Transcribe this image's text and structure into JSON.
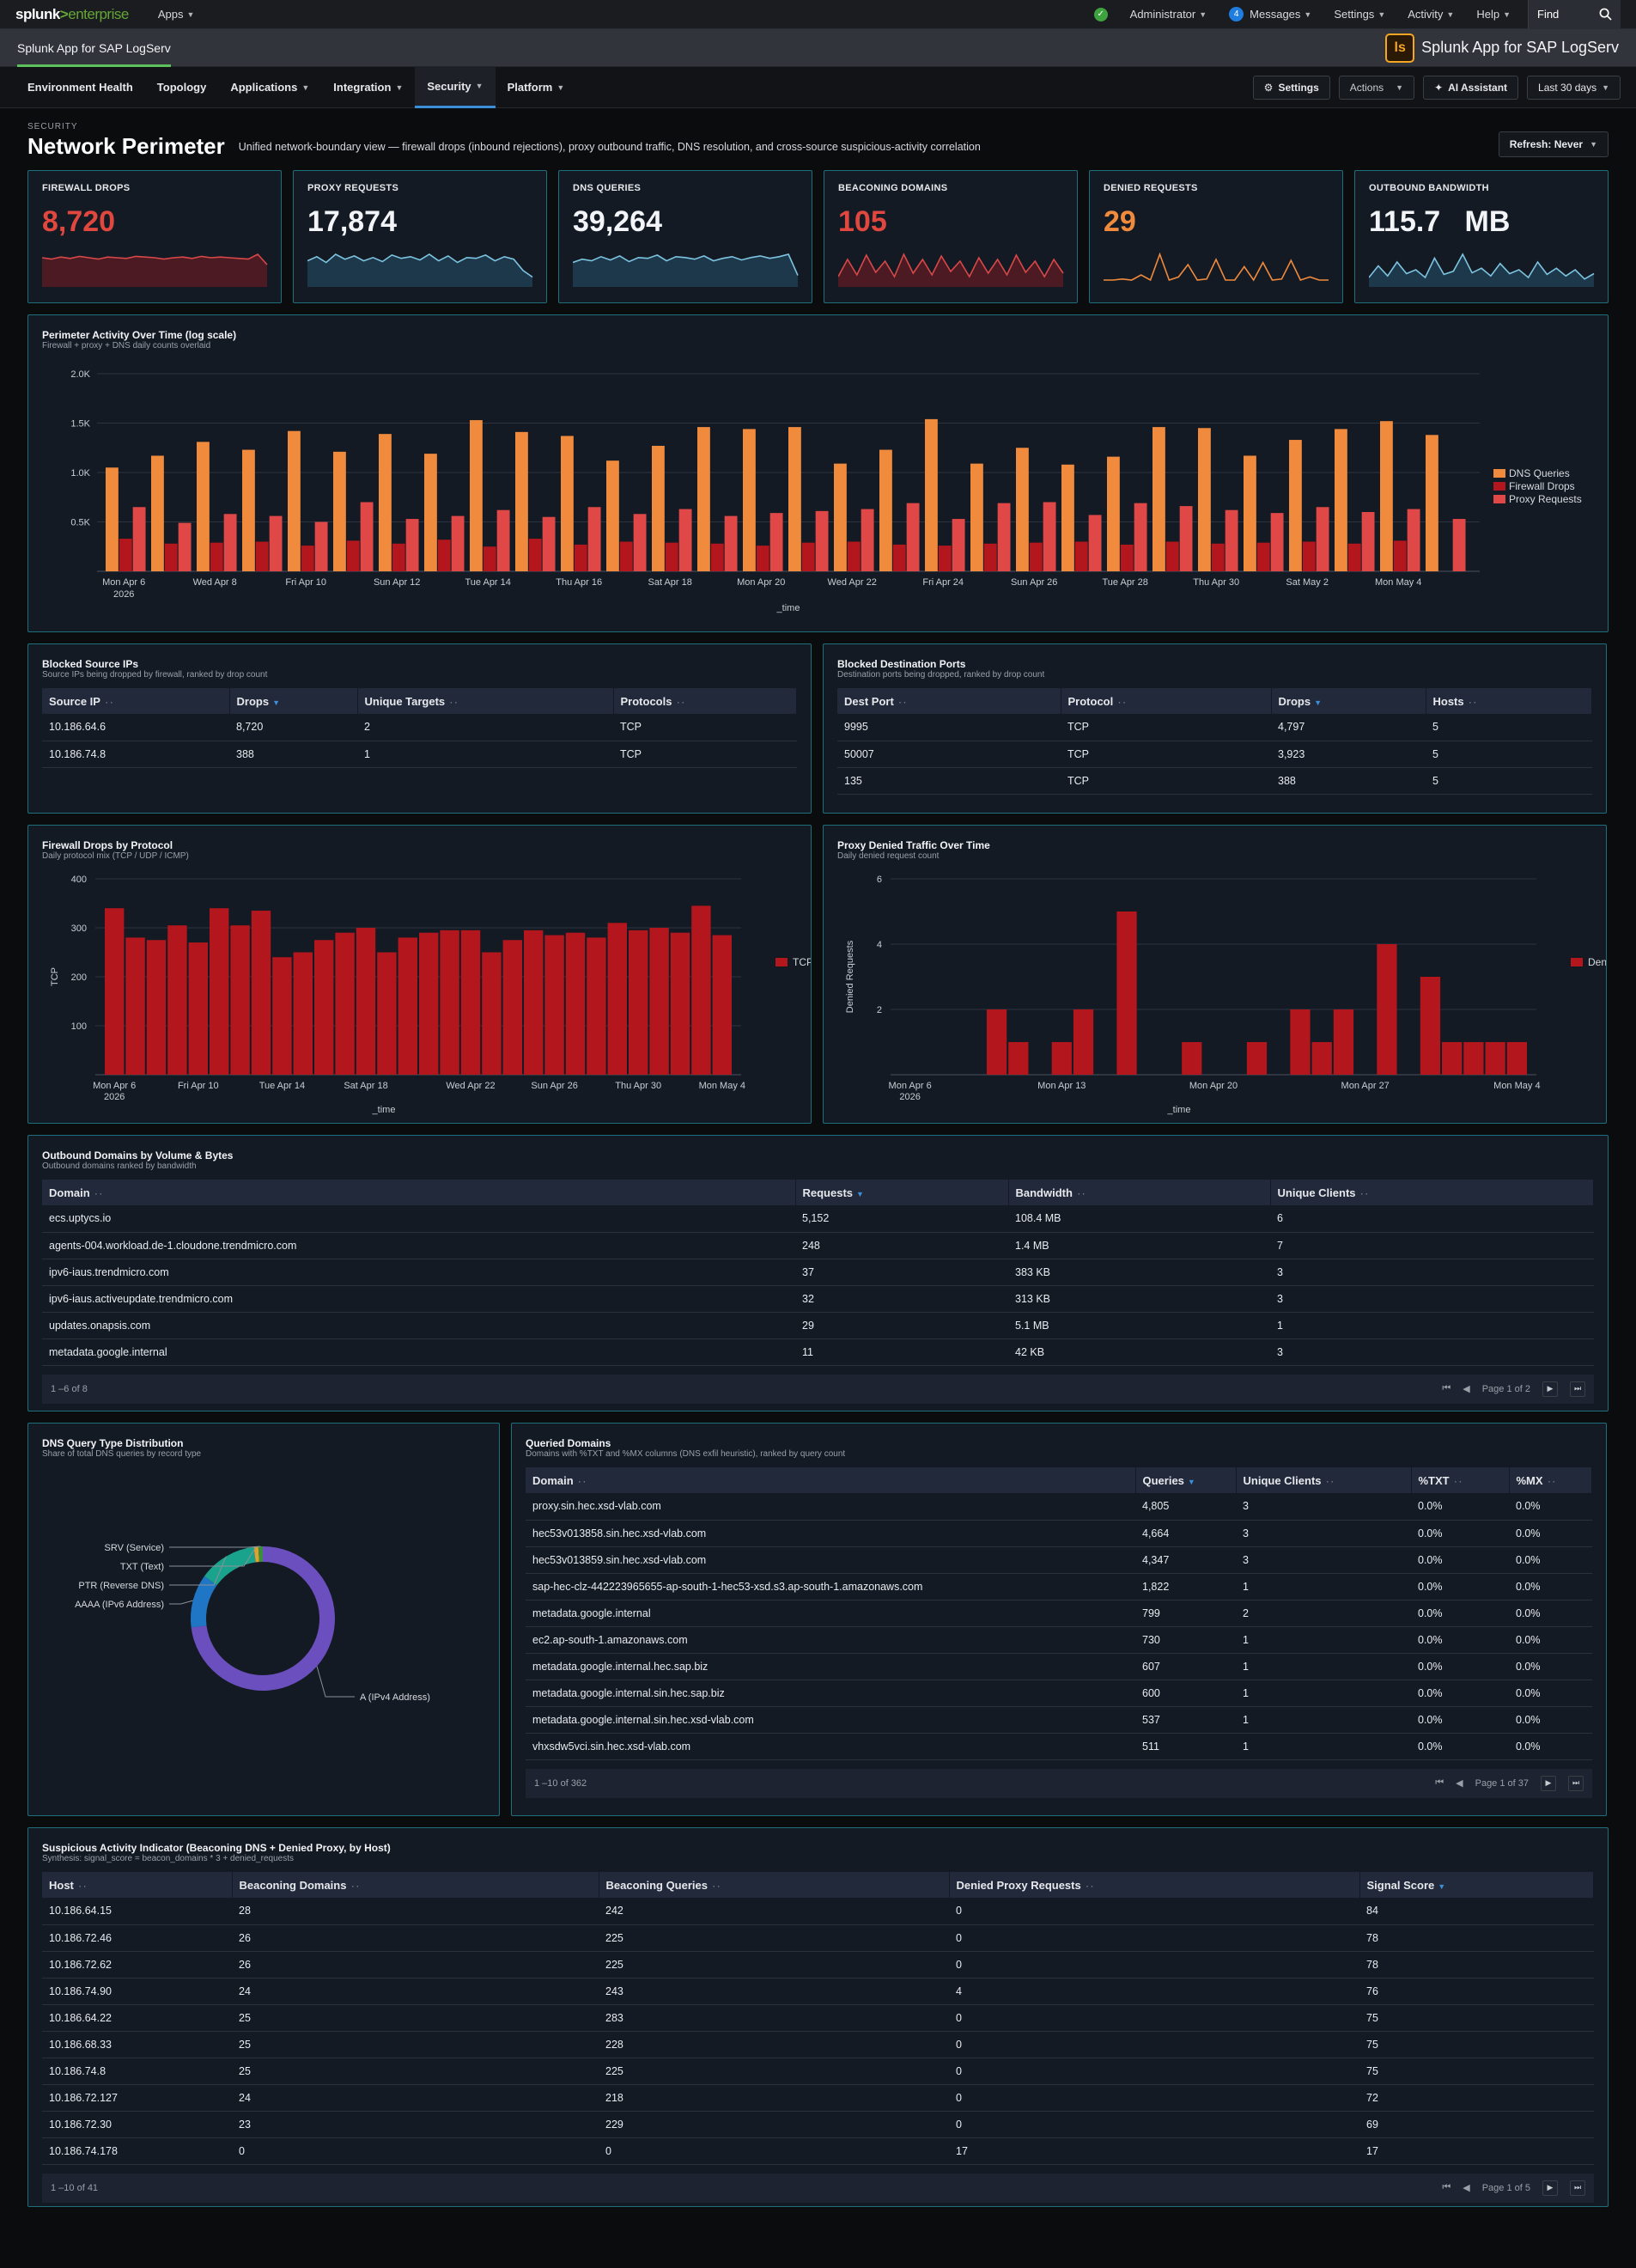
{
  "topbar": {
    "logo_main": "splunk",
    "logo_sep": ">",
    "logo_sub": "enterprise",
    "apps": "Apps",
    "admin": "Administrator",
    "messages_count": "4",
    "messages": "Messages",
    "settings": "Settings",
    "activity": "Activity",
    "help": "Help",
    "find": "Find"
  },
  "appbar": {
    "title": "Splunk App for SAP LogServ",
    "logo_letters": "ls",
    "name": "Splunk App for SAP LogServ"
  },
  "nav": {
    "tabs": [
      "Environment Health",
      "Topology",
      "Applications",
      "Integration",
      "Security",
      "Platform"
    ],
    "settings": "Settings",
    "actions": "Actions",
    "ai": "AI Assistant",
    "time": "Last 30 days"
  },
  "page": {
    "pre": "SECURITY",
    "title": "Network Perimeter",
    "desc": "Unified network-boundary view — firewall drops (inbound rejections), proxy outbound traffic, DNS resolution, and cross-source suspicious-activity correlation",
    "refresh": "Refresh: Never"
  },
  "kpis": [
    {
      "label": "FIREWALL DROPS",
      "value": "8,720",
      "color": "#e0473f",
      "spark": "#d94848",
      "fill": "#5a1a22"
    },
    {
      "label": "PROXY REQUESTS",
      "value": "17,874",
      "color": "#f2f4f7",
      "spark": "#7cc4e0",
      "fill": "#1f3e55"
    },
    {
      "label": "DNS QUERIES",
      "value": "39,264",
      "color": "#f2f4f7",
      "spark": "#7cc4e0",
      "fill": "#1f3e55"
    },
    {
      "label": "BEACONING DOMAINS",
      "value": "105",
      "color": "#e0473f",
      "spark": "#d94848",
      "fill": "#5a1a22"
    },
    {
      "label": "DENIED REQUESTS",
      "value": "29",
      "color": "#f08a3c",
      "spark": "#f08a3c",
      "fill": "none"
    },
    {
      "label": "OUTBOUND BANDWIDTH",
      "value": "115.7   MB",
      "color": "#f2f4f7",
      "spark": "#7cc4e0",
      "fill": "#1f3e55"
    }
  ],
  "perimeter": {
    "title": "Perimeter Activity Over Time (log scale)",
    "sub": "Firewall + proxy + DNS daily counts overlaid",
    "xlabel": "_time",
    "yticks": [
      "2.0K",
      "1.5K",
      "1.0K",
      "0.5K"
    ],
    "xticks": [
      "Mon Apr 6",
      "Wed Apr 8",
      "Fri Apr 10",
      "Sun Apr 12",
      "Tue Apr 14",
      "Thu Apr 16",
      "Sat Apr 18",
      "Mon Apr 20",
      "Wed Apr 22",
      "Fri Apr 24",
      "Sun Apr 26",
      "Tue Apr 28",
      "Thu Apr 30",
      "Sat May 2",
      "Mon May 4"
    ],
    "xyear": "2026",
    "legend": [
      "DNS Queries",
      "Firewall Drops",
      "Proxy Requests"
    ],
    "colors": [
      "#f08a3c",
      "#b3161c",
      "#e04848"
    ]
  },
  "chart_data": [
    {
      "type": "bar",
      "title": "Perimeter Activity Over Time (log scale)",
      "xlabel": "_time",
      "ylim": [
        0,
        2000
      ],
      "categories": [
        "Apr 6",
        "Apr 7",
        "Apr 8",
        "Apr 9",
        "Apr 10",
        "Apr 11",
        "Apr 12",
        "Apr 13",
        "Apr 14",
        "Apr 15",
        "Apr 16",
        "Apr 17",
        "Apr 18",
        "Apr 19",
        "Apr 20",
        "Apr 21",
        "Apr 22",
        "Apr 23",
        "Apr 24",
        "Apr 25",
        "Apr 26",
        "Apr 27",
        "Apr 28",
        "Apr 29",
        "Apr 30",
        "May 1",
        "May 2",
        "May 3",
        "May 4",
        "May 5"
      ],
      "series": [
        {
          "name": "DNS Queries",
          "values": [
            1050,
            1170,
            1310,
            1230,
            1420,
            1210,
            1390,
            1190,
            1530,
            1410,
            1370,
            1120,
            1270,
            1460,
            1440,
            1460,
            1090,
            1230,
            1540,
            1090,
            1250,
            1080,
            1160,
            1460,
            1450,
            1170,
            1330,
            1440,
            1520,
            1380
          ]
        },
        {
          "name": "Firewall Drops",
          "values": [
            330,
            280,
            290,
            300,
            260,
            310,
            280,
            320,
            250,
            330,
            270,
            300,
            290,
            280,
            260,
            290,
            300,
            270,
            260,
            280,
            290,
            300,
            270,
            300,
            280,
            290,
            300,
            280,
            310,
            0
          ]
        },
        {
          "name": "Proxy Requests",
          "values": [
            650,
            490,
            580,
            560,
            500,
            700,
            530,
            560,
            620,
            550,
            650,
            580,
            630,
            560,
            590,
            610,
            630,
            690,
            530,
            690,
            700,
            570,
            690,
            660,
            620,
            590,
            650,
            600,
            630,
            530
          ]
        }
      ]
    },
    {
      "type": "bar",
      "title": "Firewall Drops by Protocol",
      "xlabel": "_time",
      "ylabel": "TCP",
      "ylim": [
        0,
        400
      ],
      "categories": [
        "Apr 6",
        "Apr 7",
        "Apr 8",
        "Apr 9",
        "Apr 10",
        "Apr 11",
        "Apr 12",
        "Apr 13",
        "Apr 14",
        "Apr 15",
        "Apr 16",
        "Apr 17",
        "Apr 18",
        "Apr 19",
        "Apr 20",
        "Apr 21",
        "Apr 22",
        "Apr 23",
        "Apr 24",
        "Apr 25",
        "Apr 26",
        "Apr 27",
        "Apr 28",
        "Apr 29",
        "Apr 30",
        "May 1",
        "May 2",
        "May 3",
        "May 4",
        "May 5"
      ],
      "series": [
        {
          "name": "TCP",
          "values": [
            340,
            280,
            275,
            305,
            270,
            340,
            305,
            335,
            240,
            250,
            275,
            290,
            300,
            250,
            280,
            290,
            295,
            295,
            250,
            275,
            295,
            285,
            290,
            280,
            310,
            295,
            300,
            290,
            345,
            285
          ]
        }
      ]
    },
    {
      "type": "bar",
      "title": "Proxy Denied Traffic Over Time",
      "xlabel": "_time",
      "ylabel": "Denied Requests",
      "ylim": [
        0,
        6
      ],
      "categories": [
        "Apr 6",
        "Apr 7",
        "Apr 8",
        "Apr 9",
        "Apr 10",
        "Apr 11",
        "Apr 12",
        "Apr 13",
        "Apr 14",
        "Apr 15",
        "Apr 16",
        "Apr 17",
        "Apr 18",
        "Apr 19",
        "Apr 20",
        "Apr 21",
        "Apr 22",
        "Apr 23",
        "Apr 24",
        "Apr 25",
        "Apr 26",
        "Apr 27",
        "Apr 28",
        "Apr 29",
        "Apr 30",
        "May 1",
        "May 2",
        "May 3",
        "May 4"
      ],
      "series": [
        {
          "name": "Denied Requests",
          "values": [
            0,
            0,
            0,
            0,
            2,
            1,
            0,
            1,
            2,
            0,
            5,
            0,
            0,
            1,
            0,
            0,
            1,
            0,
            2,
            1,
            2,
            0,
            4,
            0,
            3,
            1,
            1,
            1,
            1
          ]
        }
      ]
    },
    {
      "type": "pie",
      "title": "DNS Query Type Distribution",
      "categories": [
        "A (IPv4 Address)",
        "AAAA (IPv6 Address)",
        "PTR (Reverse DNS)",
        "TXT (Text)",
        "SRV (Service)"
      ],
      "values": [
        73,
        12,
        13,
        1,
        1
      ]
    }
  ],
  "fw_protocol": {
    "title": "Firewall Drops by Protocol",
    "sub": "Daily protocol mix (TCP / UDP / ICMP)",
    "ylabel": "TCP",
    "xlabel": "_time",
    "yticks": [
      "400",
      "300",
      "200",
      "100"
    ],
    "xticks": [
      "Mon Apr 6",
      "Fri Apr 10",
      "Tue Apr 14",
      "Sat Apr 18",
      "Wed Apr 22",
      "Sun Apr 26",
      "Thu Apr 30",
      "Mon May 4"
    ],
    "xyear": "2026",
    "legend": "TCP",
    "color": "#b3161c"
  },
  "proxy_denied": {
    "title": "Proxy Denied Traffic Over Time",
    "sub": "Daily denied request count",
    "ylabel": "Denied Requests",
    "xlabel": "_time",
    "yticks": [
      "6",
      "4",
      "2"
    ],
    "xticks": [
      "Mon Apr 6",
      "Mon Apr 13",
      "Mon Apr 20",
      "Mon Apr 27",
      "Mon May 4"
    ],
    "xyear": "2026",
    "legend": "Denied Requests",
    "color": "#b3161c"
  },
  "blocked_src": {
    "title": "Blocked Source IPs",
    "sub": "Source IPs being dropped by firewall, ranked by drop count",
    "headers": [
      "Source IP",
      "Drops",
      "Unique Targets",
      "Protocols"
    ],
    "rows": [
      [
        "10.186.64.6",
        "8,720",
        "2",
        "TCP"
      ],
      [
        "10.186.74.8",
        "388",
        "1",
        "TCP"
      ]
    ]
  },
  "blocked_dst": {
    "title": "Blocked Destination Ports",
    "sub": "Destination ports being dropped, ranked by drop count",
    "headers": [
      "Dest Port",
      "Protocol",
      "Drops",
      "Hosts"
    ],
    "rows": [
      [
        "9995",
        "TCP",
        "4,797",
        "5"
      ],
      [
        "50007",
        "TCP",
        "3,923",
        "5"
      ],
      [
        "135",
        "TCP",
        "388",
        "5"
      ]
    ]
  },
  "outbound": {
    "title": "Outbound Domains by Volume & Bytes",
    "sub": "Outbound domains ranked by bandwidth",
    "headers": [
      "Domain",
      "Requests",
      "Bandwidth",
      "Unique Clients"
    ],
    "rows": [
      [
        "ecs.uptycs.io",
        "5,152",
        "108.4 MB",
        "6"
      ],
      [
        "agents-004.workload.de-1.cloudone.trendmicro.com",
        "248",
        "1.4 MB",
        "7"
      ],
      [
        "ipv6-iaus.trendmicro.com",
        "37",
        "383 KB",
        "3"
      ],
      [
        "ipv6-iaus.activeupdate.trendmicro.com",
        "32",
        "313 KB",
        "3"
      ],
      [
        "updates.onapsis.com",
        "29",
        "5.1 MB",
        "1"
      ],
      [
        "metadata.google.internal",
        "11",
        "42 KB",
        "3"
      ]
    ],
    "range": "1 –6 of 8",
    "page": "Page 1 of 2"
  },
  "dns_dist": {
    "title": "DNS Query Type Distribution",
    "sub": "Share of total DNS queries by record type",
    "labels": [
      "SRV (Service)",
      "TXT (Text)",
      "PTR (Reverse DNS)",
      "AAAA (IPv6 Address)",
      "A (IPv4 Address)"
    ],
    "colors": {
      "a": "#6b4fbf",
      "aaaa": "#1f76c4",
      "ptr": "#1aa38c",
      "txt": "#e2a12e",
      "srv": "#3b8f3b"
    }
  },
  "queried": {
    "title": "Queried Domains",
    "sub": "Domains with %TXT and %MX columns (DNS exfil heuristic), ranked by query count",
    "headers": [
      "Domain",
      "Queries",
      "Unique Clients",
      "%TXT",
      "%MX"
    ],
    "rows": [
      [
        "proxy.sin.hec.xsd-vlab.com",
        "4,805",
        "3",
        "0.0%",
        "0.0%"
      ],
      [
        "hec53v013858.sin.hec.xsd-vlab.com",
        "4,664",
        "3",
        "0.0%",
        "0.0%"
      ],
      [
        "hec53v013859.sin.hec.xsd-vlab.com",
        "4,347",
        "3",
        "0.0%",
        "0.0%"
      ],
      [
        "sap-hec-clz-442223965655-ap-south-1-hec53-xsd.s3.ap-south-1.amazonaws.com",
        "1,822",
        "1",
        "0.0%",
        "0.0%"
      ],
      [
        "metadata.google.internal",
        "799",
        "2",
        "0.0%",
        "0.0%"
      ],
      [
        "ec2.ap-south-1.amazonaws.com",
        "730",
        "1",
        "0.0%",
        "0.0%"
      ],
      [
        "metadata.google.internal.hec.sap.biz",
        "607",
        "1",
        "0.0%",
        "0.0%"
      ],
      [
        "metadata.google.internal.sin.hec.sap.biz",
        "600",
        "1",
        "0.0%",
        "0.0%"
      ],
      [
        "metadata.google.internal.sin.hec.xsd-vlab.com",
        "537",
        "1",
        "0.0%",
        "0.0%"
      ],
      [
        "vhxsdw5vci.sin.hec.xsd-vlab.com",
        "511",
        "1",
        "0.0%",
        "0.0%"
      ]
    ],
    "range": "1 –10  of 362",
    "page": "Page 1 of 37"
  },
  "suspicious": {
    "title": "Suspicious Activity Indicator (Beaconing DNS + Denied Proxy, by Host)",
    "sub": "Synthesis: signal_score = beacon_domains * 3 + denied_requests",
    "headers": [
      "Host",
      "Beaconing Domains",
      "Beaconing Queries",
      "Denied Proxy Requests",
      "Signal Score"
    ],
    "rows": [
      [
        "10.186.64.15",
        "28",
        "242",
        "0",
        "84"
      ],
      [
        "10.186.72.46",
        "26",
        "225",
        "0",
        "78"
      ],
      [
        "10.186.72.62",
        "26",
        "225",
        "0",
        "78"
      ],
      [
        "10.186.74.90",
        "24",
        "243",
        "4",
        "76"
      ],
      [
        "10.186.64.22",
        "25",
        "283",
        "0",
        "75"
      ],
      [
        "10.186.68.33",
        "25",
        "228",
        "0",
        "75"
      ],
      [
        "10.186.74.8",
        "25",
        "225",
        "0",
        "75"
      ],
      [
        "10.186.72.127",
        "24",
        "218",
        "0",
        "72"
      ],
      [
        "10.186.72.30",
        "23",
        "229",
        "0",
        "69"
      ],
      [
        "10.186.74.178",
        "0",
        "0",
        "17",
        "17"
      ]
    ],
    "range": "1 –10  of 41",
    "page": "Page 1 of 5"
  }
}
